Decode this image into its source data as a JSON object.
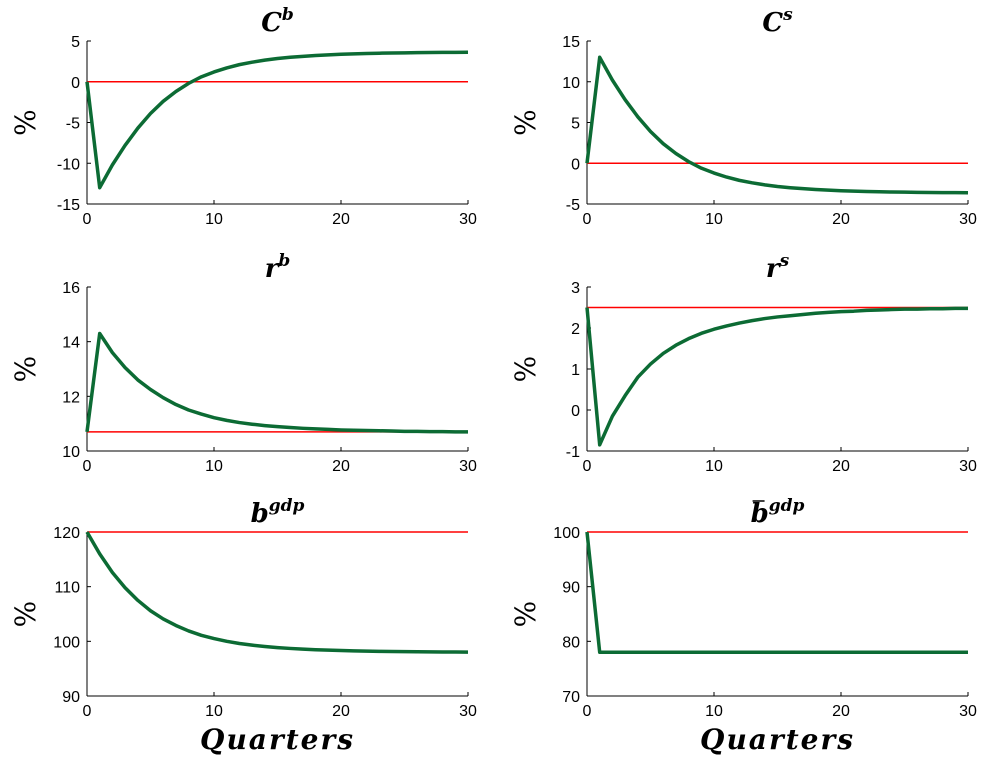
{
  "colors": {
    "series": "#0c6b34",
    "reference": "#ff0000",
    "axis": "#000000"
  },
  "chart_data": [
    {
      "type": "line",
      "title_base": "C",
      "title_sup": "b",
      "title_bar": false,
      "ylabel": "%",
      "xlabel": "",
      "xlim": [
        0,
        30
      ],
      "ylim": [
        -15,
        5
      ],
      "xticks": [
        "0",
        "10",
        "20",
        "30"
      ],
      "yticks": [
        "-15",
        "-10",
        "-5",
        "0",
        "5"
      ],
      "reference_value": 0,
      "x": [
        0,
        1,
        2,
        3,
        4,
        5,
        6,
        7,
        8,
        9,
        10,
        11,
        12,
        13,
        14,
        15,
        16,
        17,
        18,
        19,
        20,
        21,
        22,
        23,
        24,
        25,
        26,
        27,
        28,
        29,
        30
      ],
      "values": [
        0,
        -13,
        -10.2,
        -7.8,
        -5.7,
        -3.9,
        -2.4,
        -1.2,
        -0.2,
        0.6,
        1.2,
        1.7,
        2.1,
        2.4,
        2.65,
        2.85,
        3.0,
        3.12,
        3.22,
        3.3,
        3.37,
        3.42,
        3.47,
        3.5,
        3.53,
        3.55,
        3.57,
        3.59,
        3.6,
        3.61,
        3.62
      ]
    },
    {
      "type": "line",
      "title_base": "C",
      "title_sup": "s",
      "title_bar": false,
      "ylabel": "%",
      "xlabel": "",
      "xlim": [
        0,
        30
      ],
      "ylim": [
        -5,
        15
      ],
      "xticks": [
        "0",
        "10",
        "20",
        "30"
      ],
      "yticks": [
        "-5",
        "0",
        "5",
        "10",
        "15"
      ],
      "reference_value": 0,
      "x": [
        0,
        1,
        2,
        3,
        4,
        5,
        6,
        7,
        8,
        9,
        10,
        11,
        12,
        13,
        14,
        15,
        16,
        17,
        18,
        19,
        20,
        21,
        22,
        23,
        24,
        25,
        26,
        27,
        28,
        29,
        30
      ],
      "values": [
        0,
        13,
        10.2,
        7.8,
        5.7,
        3.9,
        2.4,
        1.2,
        0.2,
        -0.6,
        -1.2,
        -1.7,
        -2.1,
        -2.4,
        -2.65,
        -2.85,
        -3.0,
        -3.12,
        -3.22,
        -3.3,
        -3.37,
        -3.42,
        -3.47,
        -3.5,
        -3.53,
        -3.55,
        -3.57,
        -3.59,
        -3.6,
        -3.61,
        -3.62
      ]
    },
    {
      "type": "line",
      "title_base": "r",
      "title_sup": "b",
      "title_bar": false,
      "ylabel": "%",
      "xlabel": "",
      "xlim": [
        0,
        30
      ],
      "ylim": [
        10,
        16
      ],
      "xticks": [
        "0",
        "10",
        "20",
        "30"
      ],
      "yticks": [
        "10",
        "12",
        "14",
        "16"
      ],
      "reference_value": 10.7,
      "x": [
        0,
        1,
        2,
        3,
        4,
        5,
        6,
        7,
        8,
        9,
        10,
        11,
        12,
        13,
        14,
        15,
        16,
        17,
        18,
        19,
        20,
        21,
        22,
        23,
        24,
        25,
        26,
        27,
        28,
        29,
        30
      ],
      "values": [
        10.7,
        14.3,
        13.6,
        13.05,
        12.6,
        12.25,
        11.95,
        11.7,
        11.5,
        11.35,
        11.22,
        11.12,
        11.04,
        10.98,
        10.93,
        10.89,
        10.86,
        10.83,
        10.81,
        10.79,
        10.77,
        10.76,
        10.75,
        10.74,
        10.73,
        10.72,
        10.72,
        10.71,
        10.71,
        10.7,
        10.7
      ]
    },
    {
      "type": "line",
      "title_base": "r",
      "title_sup": "s",
      "title_bar": false,
      "ylabel": "%",
      "xlabel": "",
      "xlim": [
        0,
        30
      ],
      "ylim": [
        -1,
        3
      ],
      "xticks": [
        "0",
        "10",
        "20",
        "30"
      ],
      "yticks": [
        "-1",
        "0",
        "1",
        "2",
        "3"
      ],
      "reference_value": 2.5,
      "x": [
        0,
        1,
        2,
        3,
        4,
        5,
        6,
        7,
        8,
        9,
        10,
        11,
        12,
        13,
        14,
        15,
        16,
        17,
        18,
        19,
        20,
        21,
        22,
        23,
        24,
        25,
        26,
        27,
        28,
        29,
        30
      ],
      "values": [
        2.5,
        -0.85,
        -0.15,
        0.35,
        0.8,
        1.12,
        1.38,
        1.58,
        1.74,
        1.87,
        1.97,
        2.05,
        2.12,
        2.18,
        2.23,
        2.27,
        2.3,
        2.33,
        2.36,
        2.38,
        2.4,
        2.41,
        2.43,
        2.44,
        2.45,
        2.46,
        2.46,
        2.47,
        2.47,
        2.48,
        2.48
      ]
    },
    {
      "type": "line",
      "title_base": "b",
      "title_sup": "gdp",
      "title_bar": false,
      "ylabel": "%",
      "xlabel": "Quarters",
      "xlim": [
        0,
        30
      ],
      "ylim": [
        90,
        120
      ],
      "xticks": [
        "0",
        "10",
        "20",
        "30"
      ],
      "yticks": [
        "90",
        "100",
        "110",
        "120"
      ],
      "reference_value": 120,
      "x": [
        0,
        1,
        2,
        3,
        4,
        5,
        6,
        7,
        8,
        9,
        10,
        11,
        12,
        13,
        14,
        15,
        16,
        17,
        18,
        19,
        20,
        21,
        22,
        23,
        24,
        25,
        26,
        27,
        28,
        29,
        30
      ],
      "values": [
        120,
        116,
        112.6,
        109.8,
        107.5,
        105.6,
        104.1,
        102.9,
        101.9,
        101.1,
        100.5,
        100.0,
        99.6,
        99.3,
        99.05,
        98.85,
        98.7,
        98.57,
        98.47,
        98.39,
        98.32,
        98.26,
        98.21,
        98.17,
        98.14,
        98.11,
        98.09,
        98.07,
        98.05,
        98.04,
        98.03
      ]
    },
    {
      "type": "line",
      "title_base": "b",
      "title_sup": "gdp",
      "title_bar": true,
      "ylabel": "%",
      "xlabel": "Quarters",
      "xlim": [
        0,
        30
      ],
      "ylim": [
        70,
        100
      ],
      "xticks": [
        "0",
        "10",
        "20",
        "30"
      ],
      "yticks": [
        "70",
        "80",
        "90",
        "100"
      ],
      "reference_value": 100,
      "x": [
        0,
        1,
        2,
        3,
        4,
        5,
        6,
        7,
        8,
        9,
        10,
        11,
        12,
        13,
        14,
        15,
        16,
        17,
        18,
        19,
        20,
        21,
        22,
        23,
        24,
        25,
        26,
        27,
        28,
        29,
        30
      ],
      "values": [
        100,
        78,
        78,
        78,
        78,
        78,
        78,
        78,
        78,
        78,
        78,
        78,
        78,
        78,
        78,
        78,
        78,
        78,
        78,
        78,
        78,
        78,
        78,
        78,
        78,
        78,
        78,
        78,
        78,
        78,
        78
      ]
    }
  ]
}
